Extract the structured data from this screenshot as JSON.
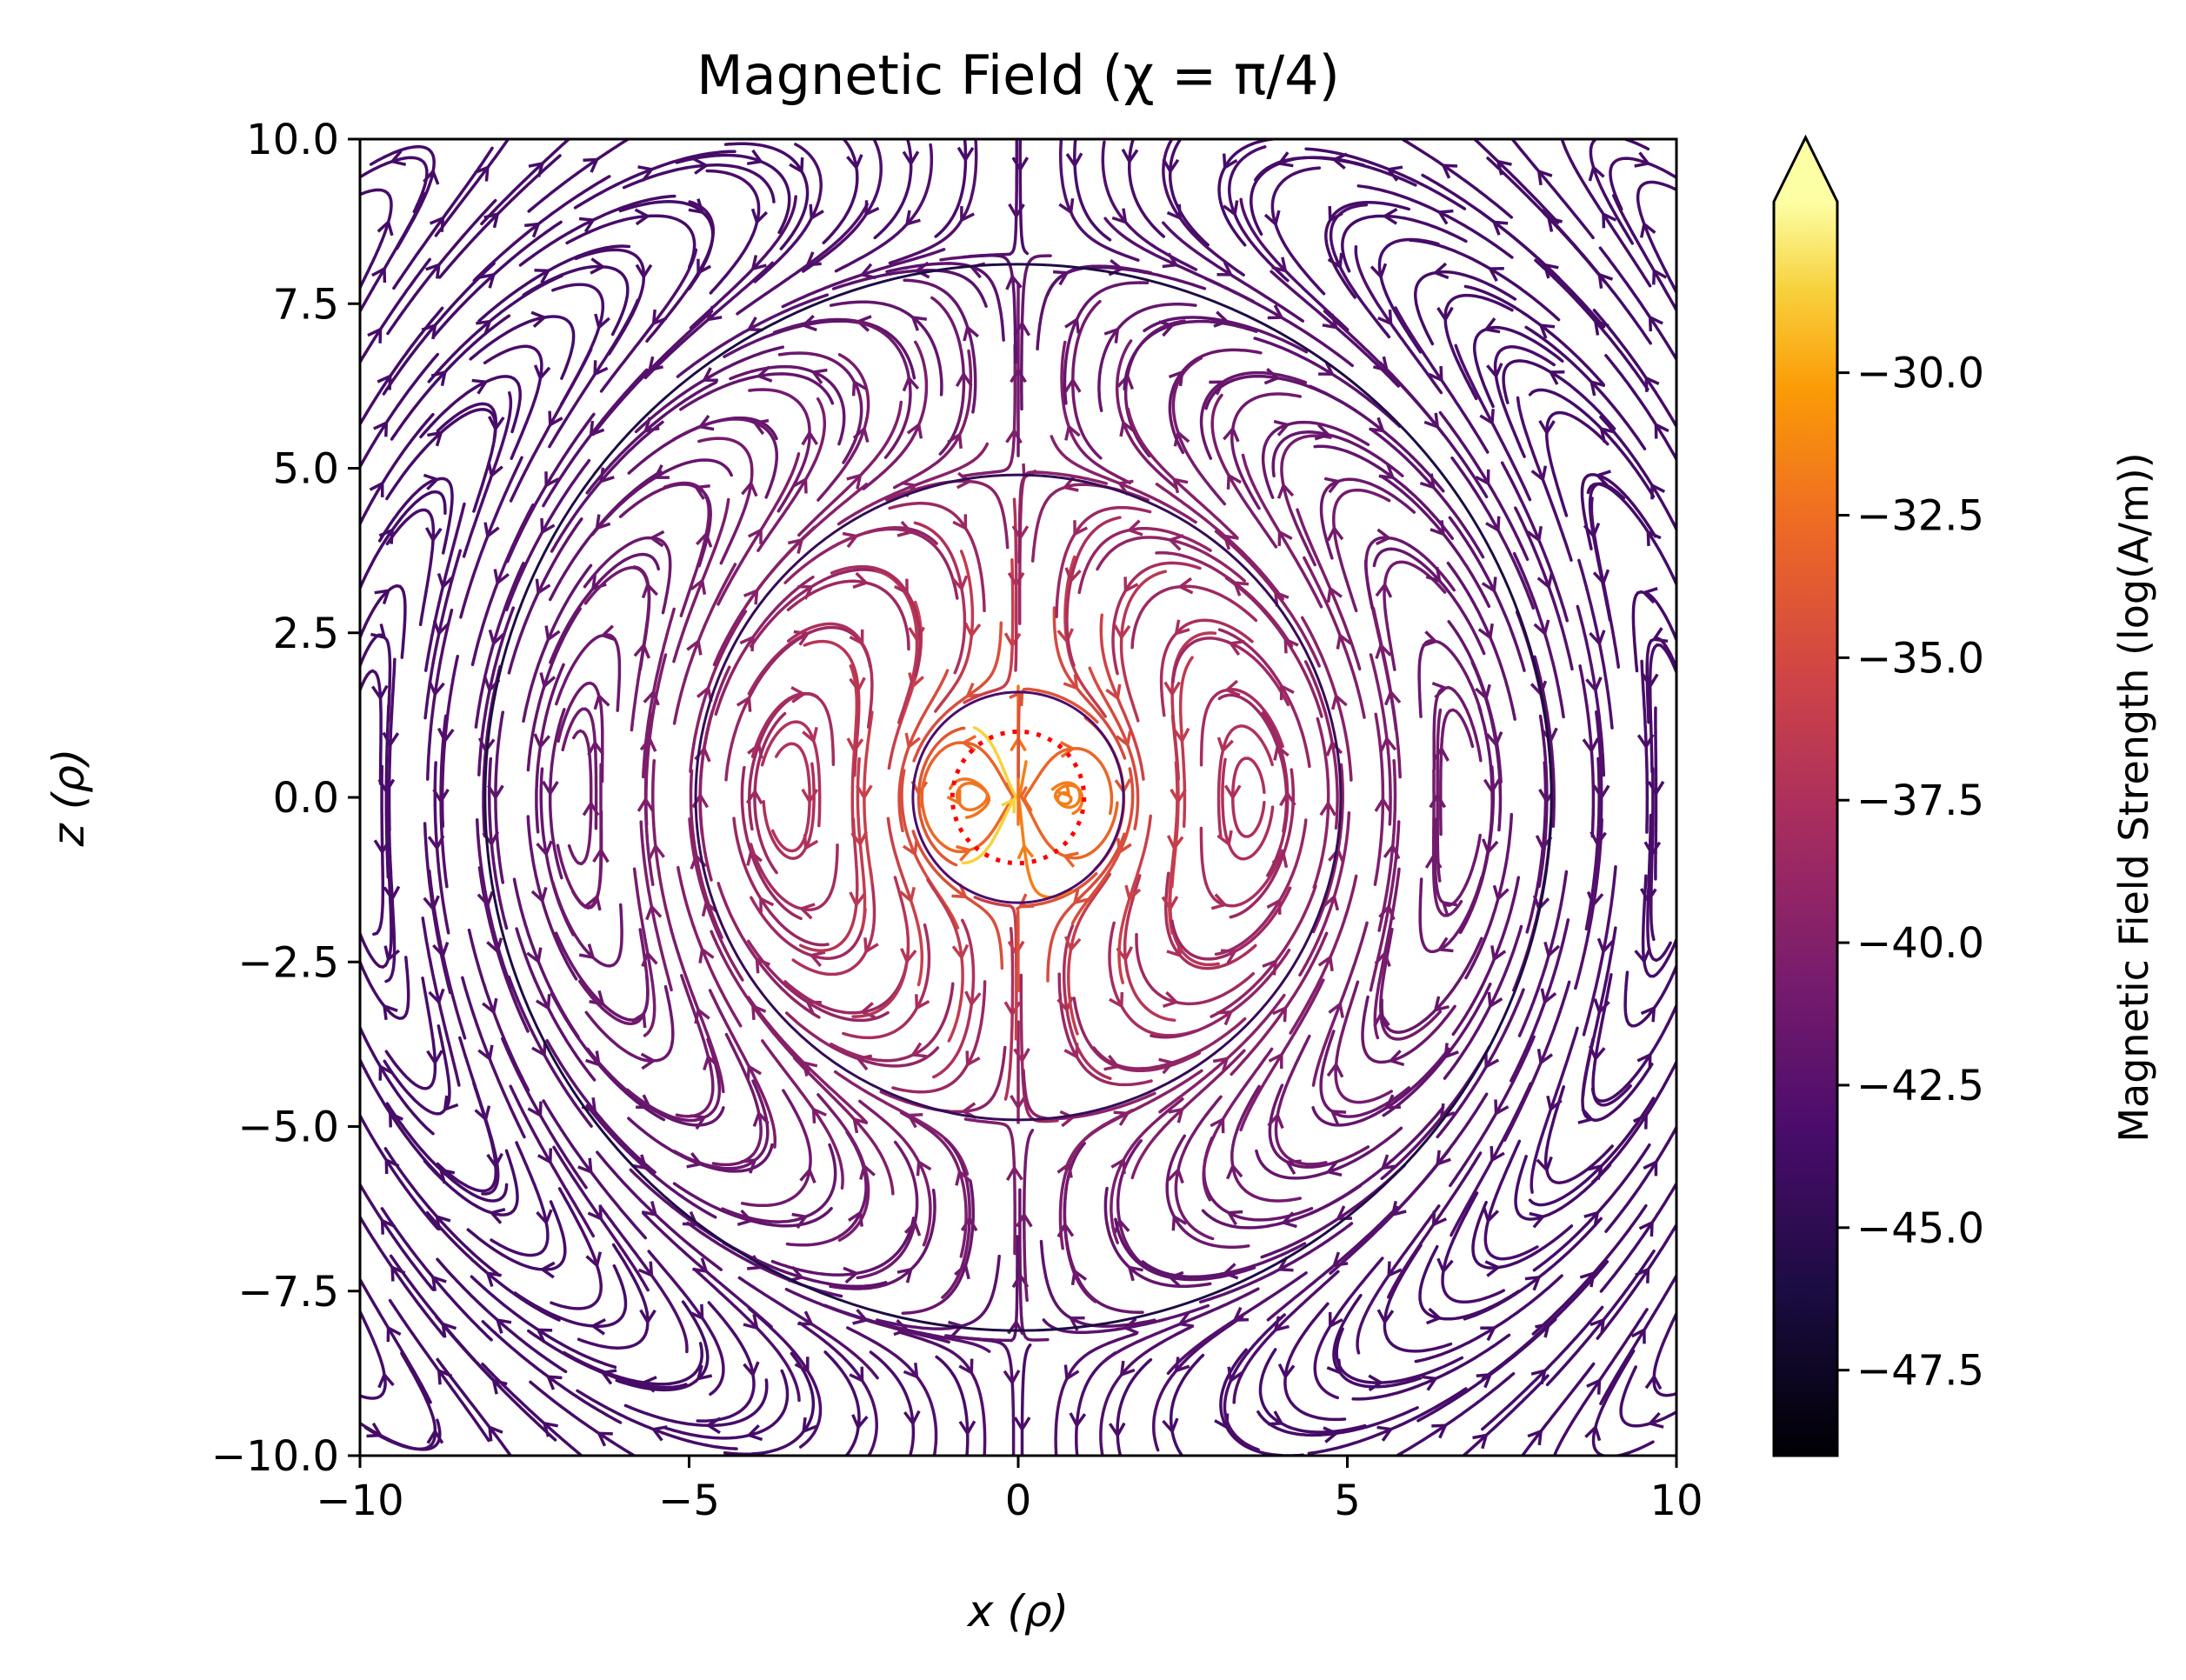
{
  "chart_data": {
    "type": "streamplot",
    "title": "Magnetic Field (χ = π/4)",
    "xlabel": "x (ρ)",
    "ylabel": "z (ρ)",
    "xlim": [
      -10,
      10
    ],
    "ylim": [
      -10,
      10
    ],
    "xticks": [
      -10,
      -5,
      0,
      5,
      10
    ],
    "xtick_labels": [
      "−10",
      "−5",
      "0",
      "5",
      "10"
    ],
    "yticks": [
      10.0,
      7.5,
      5.0,
      2.5,
      0.0,
      -2.5,
      -5.0,
      -7.5,
      -10.0
    ],
    "ytick_labels": [
      "10.0",
      "7.5",
      "5.0",
      "2.5",
      "0.0",
      "−2.5",
      "−5.0",
      "−7.5",
      "−10.0"
    ],
    "grid": false,
    "colormap": "inferno",
    "colorbar": {
      "label": "Magnetic Field Strength (log(A/m))",
      "range": [
        -49,
        -27
      ],
      "ticks": [
        -30.0,
        -32.5,
        -35.0,
        -37.5,
        -40.0,
        -42.5,
        -45.0,
        -47.5
      ],
      "tick_labels": [
        "−30.0",
        "−32.5",
        "−35.0",
        "−37.5",
        "−40.0",
        "−42.5",
        "−45.0",
        "−47.5"
      ],
      "extend": "max"
    },
    "field_pattern": {
      "description_of_pattern": "radiating dipole; streamlines form nested closed loops with boundaries at radii",
      "loop_boundary_radii": [
        1.6,
        4.9,
        8.1
      ],
      "source_marker": {
        "type": "dotted circle",
        "center": [
          0,
          0
        ],
        "radius": 1.0,
        "color": "#ff0000"
      }
    }
  }
}
